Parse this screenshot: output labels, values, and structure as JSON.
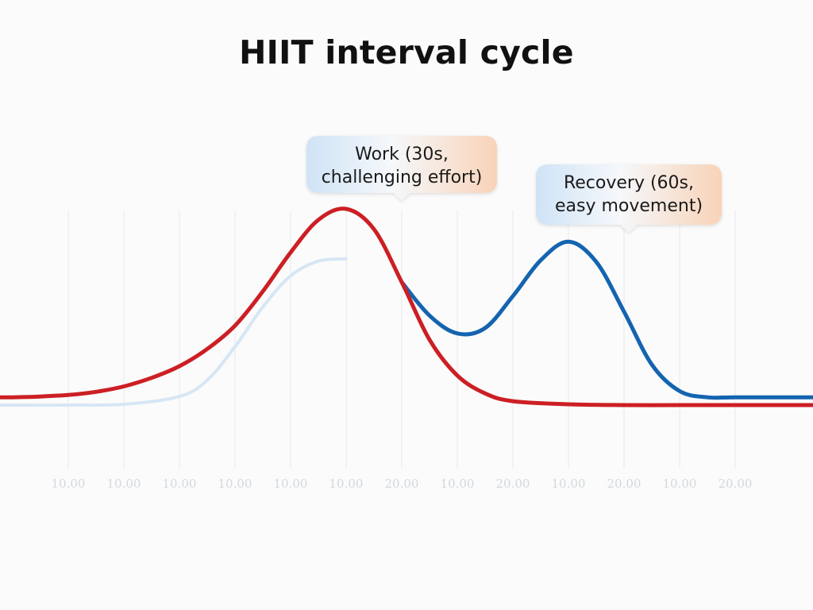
{
  "chart_data": {
    "type": "line",
    "title": "HIIT interval cycle",
    "x": [
      0,
      1,
      2,
      3,
      4,
      5,
      6,
      7,
      8,
      9,
      10,
      11,
      12,
      13,
      14
    ],
    "tick_labels": [
      "10.00",
      "10.00",
      "10.00",
      "10.00",
      "10.00",
      "10.00",
      "20.00",
      "10.00",
      "20.00",
      "10.00",
      "20.00",
      "10.00",
      "20.00"
    ],
    "grid": true,
    "series": [
      {
        "color": "#cc1f24",
        "x": [
          0,
          0.5,
          1,
          1.5,
          2,
          2.5,
          3,
          3.5,
          4,
          4.5,
          5,
          5.5,
          6,
          6.5,
          7,
          7.5,
          8,
          8.5,
          9,
          10,
          11,
          12,
          13,
          14
        ],
        "values": [
          1.0,
          1.1,
          1.3,
          1.7,
          2.4,
          3.5,
          5.0,
          7.2,
          10.2,
          14.6,
          19.6,
          23.8,
          25.2,
          22.6,
          15.8,
          8.4,
          3.8,
          1.5,
          0.5,
          0.1,
          0.0,
          0.0,
          0.0,
          0.0
        ]
      },
      {
        "color": "#1464b0",
        "x": [
          7,
          7.5,
          8,
          8.5,
          9,
          9.5,
          10,
          10.5,
          11,
          11.5,
          12,
          12.5,
          13,
          14
        ],
        "values": [
          15.8,
          11.5,
          9.2,
          9.9,
          14.0,
          18.6,
          21.0,
          18.4,
          12.0,
          5.2,
          1.8,
          1.0,
          1.0,
          1.0
        ]
      },
      {
        "color": "#d7e6f4",
        "x": [
          0,
          1,
          2,
          3,
          3.5,
          4,
          4.5,
          5,
          5.5,
          6
        ],
        "values": [
          0.0,
          0.0,
          0.1,
          1.1,
          3.2,
          7.5,
          12.6,
          16.6,
          18.5,
          18.8
        ]
      }
    ],
    "annotations": [
      {
        "lines": [
          "Work (30s,",
          "challenging effort)"
        ],
        "x": 6
      },
      {
        "lines": [
          "Recovery (60s,",
          "easy movement)"
        ],
        "x": 10
      }
    ]
  }
}
